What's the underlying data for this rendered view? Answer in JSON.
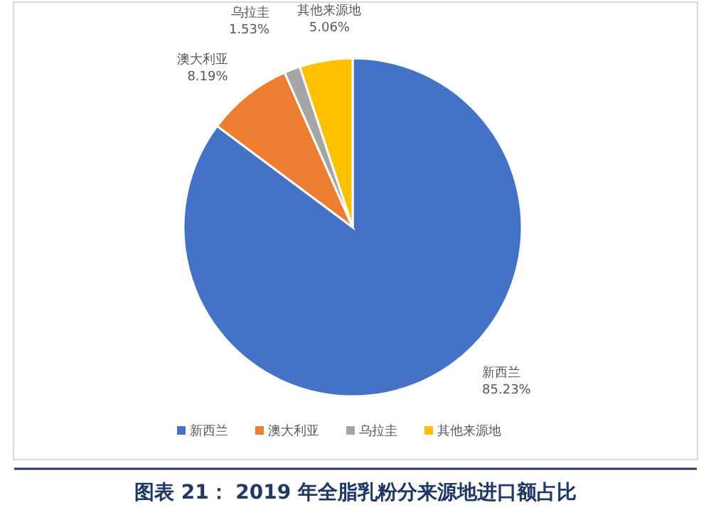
{
  "chart_data": {
    "type": "pie",
    "title": "图表 21： 2019 年全脂乳粉分来源地进口额占比",
    "categories": [
      "新西兰",
      "澳大利亚",
      "乌拉圭",
      "其他来源地"
    ],
    "values": [
      85.23,
      8.19,
      1.53,
      5.06
    ],
    "value_labels": [
      "85.23%",
      "8.19%",
      "1.53%",
      "5.06%"
    ],
    "colors": [
      "#4472c4",
      "#ed7d31",
      "#a5a5a5",
      "#ffc000"
    ],
    "legend": "bottom"
  }
}
